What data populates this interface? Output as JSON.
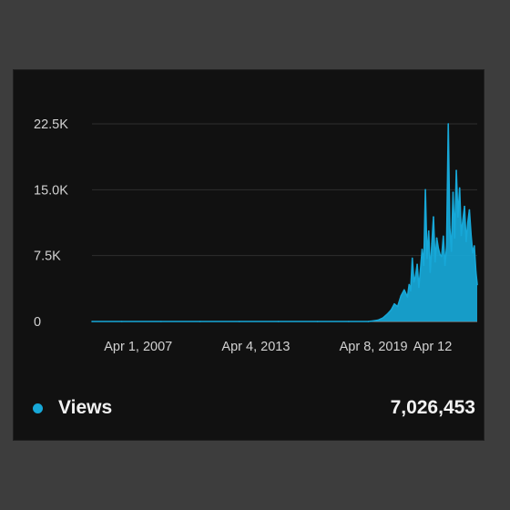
{
  "chart_data": {
    "type": "area",
    "title": "",
    "xlabel": "",
    "ylabel": "",
    "ylim": [
      0,
      22500
    ],
    "yticks": [
      0,
      7500,
      15000,
      22500
    ],
    "yticklabels": [
      "0",
      "7.5K",
      "15.0K",
      "22.5K"
    ],
    "xlim": [
      "2004-11-20",
      "2024-07-25"
    ],
    "xticks": [
      "2007-04-01",
      "2013-04-04",
      "2019-04-08",
      "2023-04-12"
    ],
    "xticklabels": [
      "Apr 1, 2007",
      "Apr 4, 2013",
      "Apr 8, 2019",
      "Apr 12"
    ],
    "grid": true,
    "colors": {
      "series": "#17a8d8",
      "grid": "#2e2e2e",
      "baseline": "#9a9a9a",
      "text": "#d2d2d2"
    },
    "series": [
      {
        "name": "Views",
        "total": "7,026,453",
        "x": [
          "2004-11-20",
          "2006-06-01",
          "2008-06-01",
          "2010-06-01",
          "2012-06-01",
          "2014-06-01",
          "2016-06-01",
          "2018-01-01",
          "2019-01-01",
          "2019-04-01",
          "2019-07-01",
          "2019-10-01",
          "2020-01-01",
          "2020-03-01",
          "2020-05-01",
          "2020-07-01",
          "2020-09-01",
          "2020-11-01",
          "2021-01-01",
          "2021-02-01",
          "2021-03-01",
          "2021-04-01",
          "2021-05-01",
          "2021-06-01",
          "2021-07-01",
          "2021-08-01",
          "2021-09-01",
          "2021-10-01",
          "2021-11-01",
          "2021-12-01",
          "2022-01-01",
          "2022-02-01",
          "2022-03-01",
          "2022-04-01",
          "2022-05-01",
          "2022-06-01",
          "2022-07-01",
          "2022-08-01",
          "2022-09-01",
          "2022-10-01",
          "2022-11-01",
          "2022-12-01",
          "2023-01-01",
          "2023-02-01",
          "2023-03-01",
          "2023-04-01",
          "2023-05-01",
          "2023-06-01",
          "2023-07-01",
          "2023-08-01",
          "2023-09-01",
          "2023-10-01",
          "2023-11-01",
          "2023-12-01",
          "2024-01-01",
          "2024-02-01",
          "2024-03-01",
          "2024-04-01",
          "2024-05-01",
          "2024-06-01",
          "2024-07-01",
          "2024-07-25"
        ],
        "values": [
          0,
          0,
          0,
          0,
          0,
          0,
          0,
          0,
          0,
          60,
          150,
          400,
          900,
          1300,
          2000,
          1700,
          2900,
          3600,
          2800,
          4200,
          3500,
          7200,
          4500,
          5200,
          6500,
          3900,
          5900,
          8200,
          6400,
          15000,
          7200,
          10300,
          5600,
          8900,
          11900,
          6800,
          9500,
          8300,
          7600,
          7400,
          9700,
          6400,
          8500,
          22500,
          10800,
          8000,
          14700,
          9500,
          17200,
          11900,
          15200,
          9800,
          11600,
          13100,
          9100,
          11300,
          12700,
          9900,
          7800,
          8600,
          5600,
          4200
        ]
      }
    ]
  }
}
